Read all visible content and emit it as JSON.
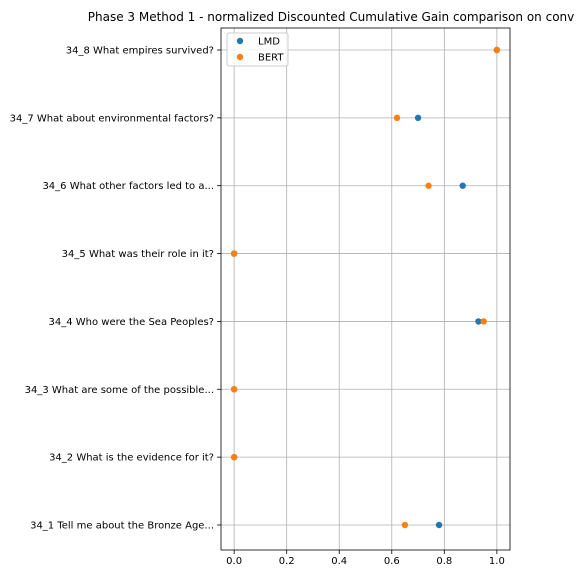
{
  "chart_data": {
    "type": "scatter",
    "title": "Phase 3 Method 1 - normalized Discounted Cumulative Gain comparison on conv",
    "xlabel": "",
    "ylabel": "",
    "xlim": [
      -0.05,
      1.05
    ],
    "xticks": [
      "0.0",
      "0.2",
      "0.4",
      "0.6",
      "0.8",
      "1.0"
    ],
    "grid": true,
    "legend_position": "top-left",
    "categories": [
      "34_1 Tell me about the Bronze Age...",
      "34_2 What is the evidence for it?",
      "34_3 What are some of the possible...",
      "34_4 Who were the Sea Peoples?",
      "34_5 What was their role in it?",
      "34_6 What other factors led to a...",
      "34_7 What about environmental factors?",
      "34_8 What empires survived?"
    ],
    "series": [
      {
        "name": "LMD",
        "color": "#1f77b4",
        "values": [
          0.78,
          0.0,
          0.0,
          0.93,
          0.0,
          0.87,
          0.7,
          1.0
        ]
      },
      {
        "name": "BERT",
        "color": "#ff7f0e",
        "values": [
          0.65,
          0.0,
          0.0,
          0.95,
          0.0,
          0.74,
          0.62,
          1.0
        ]
      }
    ]
  }
}
